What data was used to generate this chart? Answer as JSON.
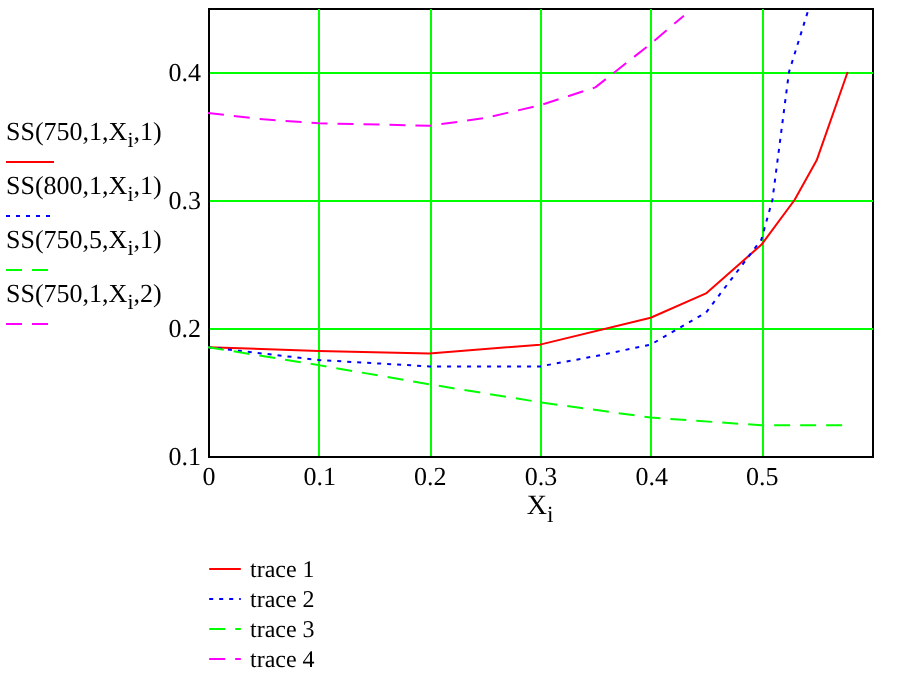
{
  "chart_data": {
    "type": "line",
    "xlabel": "X$_{i}$",
    "annotations": [
      "SS(750,1,X$_{i}$,1)",
      "SS(800,1,X$_{i}$,1)",
      "SS(750,5,X$_{i}$,1)",
      "SS(750,1,X$_{i}$,2)"
    ],
    "xlim": [
      0,
      0.6
    ],
    "xticks": [
      0,
      0.1,
      0.2,
      0.3,
      0.4,
      0.5
    ],
    "ylim": [
      0.1,
      0.45
    ],
    "yticks": [
      0.1,
      0.2,
      0.3,
      0.4
    ],
    "grid": true,
    "legend": "bottom left",
    "marker": "none",
    "series": [
      {
        "name": "trace 1",
        "color": "#ff0000",
        "line_style": "solid",
        "x": [
          0,
          0.1,
          0.2,
          0.3,
          0.4,
          0.45,
          0.5,
          0.53,
          0.55,
          0.578
        ],
        "values": [
          0.185,
          0.182,
          0.18,
          0.187,
          0.208,
          0.227,
          0.265,
          0.3,
          0.331,
          0.4
        ]
      },
      {
        "name": "trace 2",
        "color": "#0000ff",
        "line_style": "dotted",
        "x": [
          0,
          0.1,
          0.2,
          0.3,
          0.35,
          0.4,
          0.45,
          0.5,
          0.51,
          0.525,
          0.543
        ],
        "values": [
          0.185,
          0.175,
          0.17,
          0.17,
          0.178,
          0.187,
          0.212,
          0.269,
          0.3,
          0.4,
          0.45
        ]
      },
      {
        "name": "trace 3",
        "color": "#00ff00",
        "line_style": "dashed",
        "x": [
          0,
          0.1,
          0.2,
          0.3,
          0.4,
          0.5,
          0.575
        ],
        "values": [
          0.185,
          0.171,
          0.156,
          0.142,
          0.13,
          0.124,
          0.124
        ]
      },
      {
        "name": "trace 4",
        "color": "#ff00ff",
        "line_style": "dashed",
        "x": [
          0,
          0.05,
          0.1,
          0.2,
          0.25,
          0.3,
          0.35,
          0.4,
          0.43
        ],
        "values": [
          0.368,
          0.363,
          0.36,
          0.358,
          0.364,
          0.374,
          0.388,
          0.422,
          0.444
        ]
      }
    ]
  }
}
